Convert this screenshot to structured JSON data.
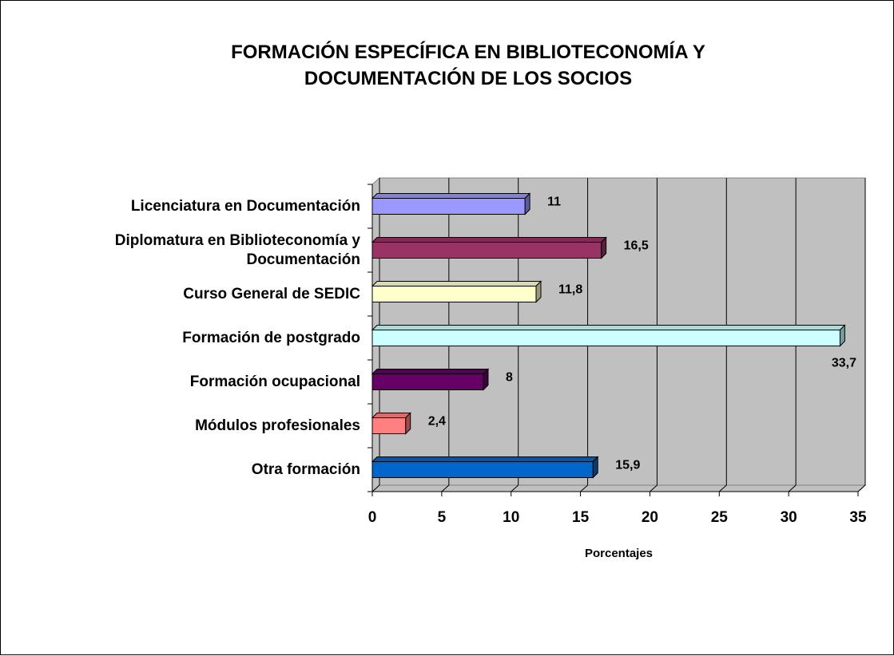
{
  "chart_data": {
    "type": "bar",
    "orientation": "horizontal",
    "style": "3d",
    "title": "FORMACIÓN ESPECÍFICA EN BIBLIOTECONOMÍA Y DOCUMENTACIÓN DE LOS SOCIOS",
    "xlabel": "Porcentajes",
    "categories": [
      "Licenciatura en Documentación",
      "Diplomatura en Biblioteconomía y Documentación",
      "Curso General de SEDIC",
      "Formación de postgrado",
      "Formación ocupacional",
      "Módulos profesionales",
      "Otra formación"
    ],
    "values": [
      11,
      16.5,
      11.8,
      33.7,
      8,
      2.4,
      15.9
    ],
    "value_labels": [
      "11",
      "16,5",
      "11,8",
      "33,7",
      "8",
      "2,4",
      "15,9"
    ],
    "colors": [
      "#9999ff",
      "#993366",
      "#ffffcc",
      "#ccffff",
      "#660066",
      "#ff8080",
      "#0066cc"
    ],
    "xlim": [
      0,
      35
    ],
    "xticks": [
      0,
      5,
      10,
      15,
      20,
      25,
      30,
      35
    ],
    "grid": true
  }
}
